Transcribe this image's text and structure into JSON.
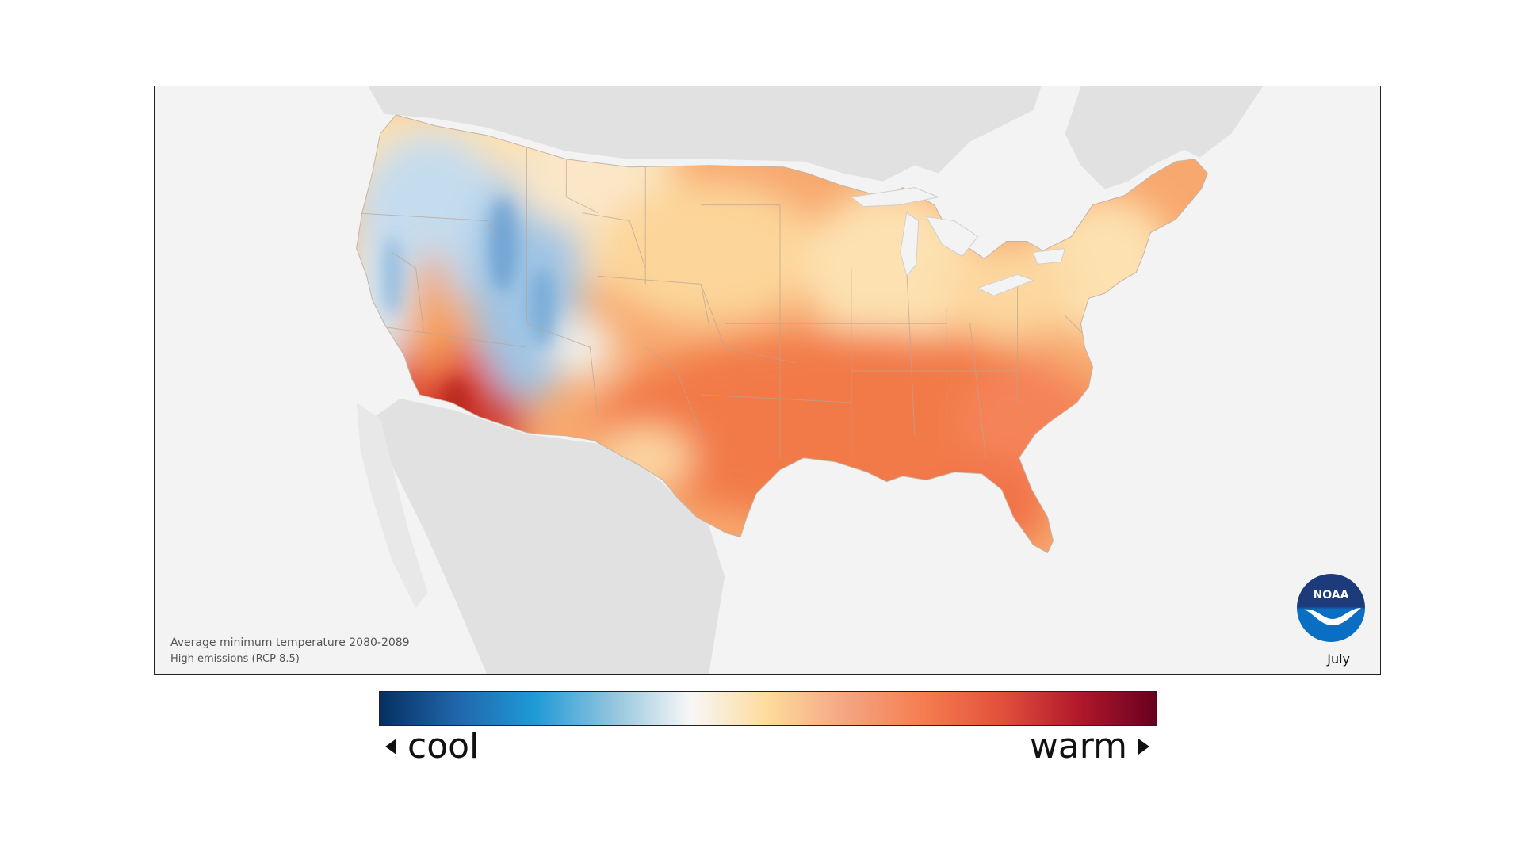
{
  "map": {
    "caption_title": "Average minimum temperature 2080-2089",
    "caption_subtitle": "High emissions (RCP 8.5)",
    "month": "July",
    "logo_text": "NOAA"
  },
  "legend": {
    "cool_label": "cool",
    "warm_label": "warm",
    "gradient_colors": [
      "#053061",
      "#2166ac",
      "#1f9ad6",
      "#92c5de",
      "#f7f7f7",
      "#fddb9c",
      "#f4a582",
      "#f57d4f",
      "#e3503c",
      "#b2182b",
      "#67001f"
    ]
  },
  "colors": {
    "land_fill": "#e1e1e1",
    "ocean_fill": "#f3f3f3",
    "cool_zone": "#a9cde8",
    "warm_zone": "#f58a5a",
    "hot_zone": "#c8281f",
    "noaa_blue": "#0a6fc2",
    "noaa_navy": "#1d3a7a"
  }
}
